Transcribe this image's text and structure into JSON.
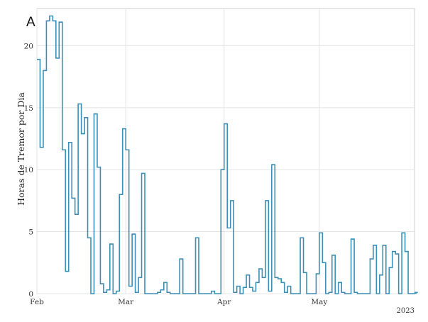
{
  "panel_letter": "A",
  "chart_data": {
    "type": "line",
    "step": true,
    "title": "",
    "xlabel": "",
    "ylabel": "Horas de Tremor por Dia",
    "year_label": "2023",
    "x_start": "2023-02-01",
    "x_end": "2023-05-31",
    "xticks": [
      {
        "label": "Feb",
        "date": "2023-02-01"
      },
      {
        "label": "Mar",
        "date": "2023-03-01"
      },
      {
        "label": "Apr",
        "date": "2023-04-01"
      },
      {
        "label": "May",
        "date": "2023-05-01"
      }
    ],
    "yticks": [
      0,
      5,
      10,
      15,
      20
    ],
    "ylim": [
      0,
      23
    ],
    "grid": true,
    "line_color": "#3a8fb5",
    "series": [
      {
        "values": [
          18.9,
          11.8,
          18.0,
          22.0,
          22.4,
          22.0,
          19.0,
          21.9,
          11.6,
          1.8,
          12.2,
          7.7,
          6.4,
          15.3,
          12.9,
          14.2,
          4.5,
          0.0,
          14.5,
          10.2,
          0.8,
          0.1,
          0.3,
          4.0,
          0.0,
          0.2,
          8.0,
          13.3,
          11.6,
          0.6,
          4.8,
          0.1,
          1.3,
          9.7,
          0.0,
          0.0,
          0.0,
          0.0,
          0.1,
          0.3,
          0.9,
          0.1,
          0.0,
          0.0,
          0.0,
          2.8,
          0.0,
          0.0,
          0.0,
          0.0,
          4.5,
          0.0,
          0.0,
          0.0,
          0.0,
          0.2,
          0.0,
          0.0,
          10.0,
          13.7,
          5.3,
          7.5,
          0.1,
          0.6,
          0.0,
          0.5,
          1.5,
          0.5,
          0.2,
          0.9,
          2.0,
          1.3,
          7.5,
          0.2,
          10.4,
          1.3,
          1.2,
          0.9,
          0.1,
          0.6,
          0.0,
          0.0,
          0.0,
          4.5,
          1.7,
          0.0,
          0.0,
          0.0,
          1.6,
          4.9,
          2.5,
          0.0,
          0.1,
          3.1,
          0.0,
          0.9,
          0.1,
          0.0,
          0.0,
          4.4,
          0.1,
          0.0,
          0.0,
          0.0,
          0.0,
          2.8,
          3.9,
          0.0,
          1.5,
          3.9,
          0.0,
          2.1,
          3.4,
          3.2,
          0.0,
          4.9,
          3.4,
          0.0,
          0.0,
          0.0,
          0.1
        ]
      }
    ]
  }
}
